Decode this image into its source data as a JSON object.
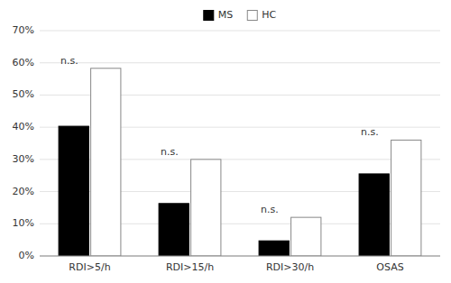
{
  "chart_data": {
    "type": "bar",
    "categories": [
      "RDI>5/h",
      "RDI>15/h",
      "RDI>30/h",
      "OSAS"
    ],
    "series": [
      {
        "name": "MS",
        "color": "#000000",
        "values": [
          0.403,
          0.163,
          0.047,
          0.255
        ]
      },
      {
        "name": "HC",
        "color": "#ffffff",
        "values": [
          0.583,
          0.3,
          0.12,
          0.36
        ]
      }
    ],
    "ylim": [
      0,
      0.7
    ],
    "yticks": [
      {
        "value": 0.0,
        "label": "0%"
      },
      {
        "value": 0.1,
        "label": "10%"
      },
      {
        "value": 0.2,
        "label": "20%"
      },
      {
        "value": 0.3,
        "label": "30%"
      },
      {
        "value": 0.4,
        "label": "40%"
      },
      {
        "value": 0.5,
        "label": "50%"
      },
      {
        "value": 0.6,
        "label": "60%"
      },
      {
        "value": 0.7,
        "label": "70%"
      }
    ],
    "annotations": [
      "n.s.",
      "n.s.",
      "n.s.",
      "n.s."
    ],
    "grid": true,
    "legend": "top"
  }
}
